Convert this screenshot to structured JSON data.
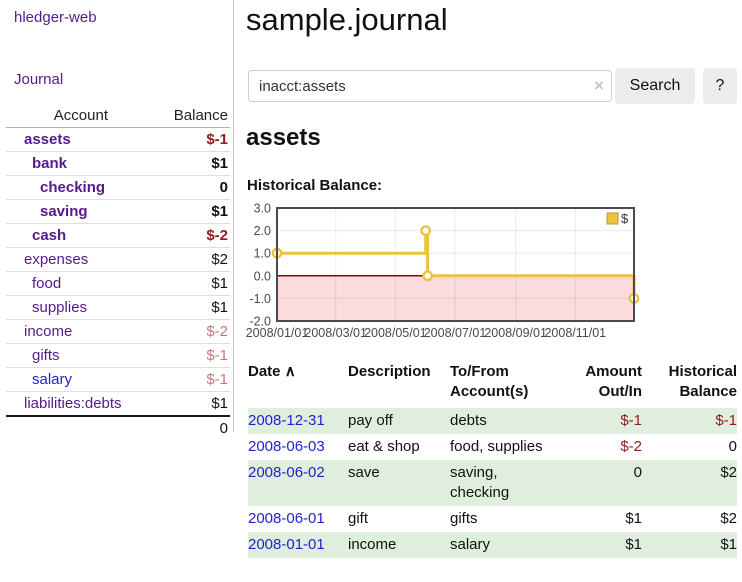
{
  "sidebar": {
    "brand": "hledger-web",
    "nav": {
      "journal": "Journal"
    },
    "table": {
      "col_account": "Account",
      "col_balance": "Balance"
    },
    "accounts": [
      {
        "name": "assets",
        "balance": "$-1",
        "level": 1,
        "bold": true,
        "balance_class": "neg-strong"
      },
      {
        "name": "bank",
        "balance": "$1",
        "level": 2,
        "bold": true,
        "balance_class": ""
      },
      {
        "name": "checking",
        "balance": "0",
        "level": 3,
        "bold": true,
        "balance_class": ""
      },
      {
        "name": "saving",
        "balance": "$1",
        "level": 3,
        "bold": true,
        "balance_class": ""
      },
      {
        "name": "cash",
        "balance": "$-2",
        "level": 2,
        "bold": true,
        "balance_class": "neg-strong"
      },
      {
        "name": "expenses",
        "balance": "$2",
        "level": 1,
        "bold": false,
        "balance_class": ""
      },
      {
        "name": "food",
        "balance": "$1",
        "level": 2,
        "bold": false,
        "balance_class": ""
      },
      {
        "name": "supplies",
        "balance": "$1",
        "level": 2,
        "bold": false,
        "balance_class": ""
      },
      {
        "name": "income",
        "balance": "$-2",
        "level": 1,
        "bold": false,
        "balance_class": "neg-soft"
      },
      {
        "name": "gifts",
        "balance": "$-1",
        "level": 2,
        "bold": false,
        "balance_class": "neg-soft"
      },
      {
        "name": "salary",
        "balance": "$-1",
        "level": 2,
        "bold": false,
        "balance_class": "neg-soft",
        "unvisited": true
      },
      {
        "name": "liabilities:debts",
        "balance": "$1",
        "level": 1,
        "bold": false,
        "balance_class": ""
      }
    ],
    "total": "0"
  },
  "main": {
    "title": "sample.journal",
    "search": {
      "value": "inacct:assets",
      "clear_icon": "×",
      "search_button": "Search",
      "help_button": "?"
    },
    "account_heading": "assets",
    "chart_label": "Historical Balance:"
  },
  "chart_data": {
    "type": "line",
    "title": "Historical Balance:",
    "steps": true,
    "series": [
      {
        "name": "$",
        "color": "#edc240",
        "points": [
          [
            "2008-01-01",
            1
          ],
          [
            "2008-06-01",
            2
          ],
          [
            "2008-06-03",
            0
          ],
          [
            "2008-12-31",
            -1
          ]
        ]
      }
    ],
    "x_range": [
      "2008-01-01",
      "2008-12-31"
    ],
    "x_ticks": [
      "2008/01/01",
      "2008/03/01",
      "2008/05/01",
      "2008/07/01",
      "2008/09/01",
      "2008/11/01"
    ],
    "y_ticks": [
      3.0,
      2.0,
      1.0,
      0.0,
      -1.0,
      -2.0
    ],
    "ylim": [
      -2.0,
      3.0
    ],
    "legend": {
      "label": "$",
      "position": "top-right"
    },
    "grid": true,
    "colors": {
      "line": "#edc240",
      "marker_fill": "#ffffff",
      "legend_box_border": "#bb9b30",
      "negative_region": "#fbdbdd",
      "zero_line": "#8b0000",
      "plot_border": "#4a4a4a",
      "tick_text": "#4a4a4a"
    }
  },
  "register": {
    "header": {
      "date": "Date",
      "sort_icon": "∧",
      "description": "Description",
      "tofrom_1": "To/From",
      "tofrom_2": "Account(s)",
      "amount_1": "Amount",
      "amount_2": "Out/In",
      "balance_1": "Historical",
      "balance_2": "Balance"
    },
    "rows": [
      {
        "date": "2008-12-31",
        "description": "pay off",
        "accounts": "debts",
        "amount": "$-1",
        "amount_class": "neg-strong",
        "balance": "$-1",
        "balance_class": "neg-strong"
      },
      {
        "date": "2008-06-03",
        "description": "eat & shop",
        "accounts": "food, supplies",
        "amount": "$-2",
        "amount_class": "neg-strong",
        "balance": "0",
        "balance_class": ""
      },
      {
        "date": "2008-06-02",
        "description": "save",
        "accounts": "saving, checking",
        "amount": "0",
        "amount_class": "",
        "balance": "$2",
        "balance_class": ""
      },
      {
        "date": "2008-06-01",
        "description": "gift",
        "accounts": "gifts",
        "amount": "$1",
        "amount_class": "",
        "balance": "$2",
        "balance_class": ""
      },
      {
        "date": "2008-01-01",
        "description": "income",
        "accounts": "salary",
        "amount": "$1",
        "amount_class": "",
        "balance": "$1",
        "balance_class": ""
      }
    ]
  },
  "colors": {
    "link_purple": "#551a8b",
    "link_blue": "#2222cc",
    "negative_strong": "#8f1d1f",
    "negative_soft": "#c4787e",
    "row_stripe_green": "#e0eedd",
    "button_gray": "#ececec"
  }
}
